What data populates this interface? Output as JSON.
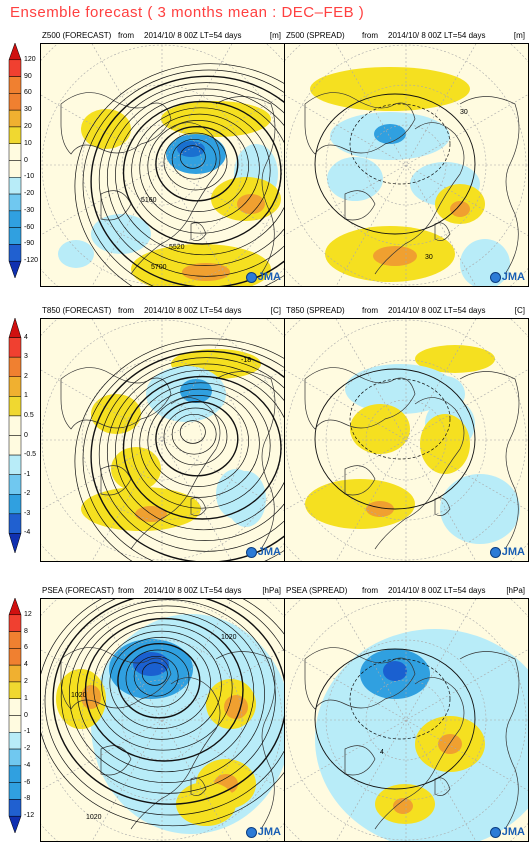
{
  "title": "Ensemble forecast ( 3 months mean : DEC–FEB )",
  "rows": [
    {
      "forecast_header": {
        "var": "Z500 (FORECAST)",
        "from": "from",
        "init": "2014/10/ 8 00Z LT=54 days",
        "unit": "[m]"
      },
      "spread_header": {
        "var": "Z500 (SPREAD)",
        "from": "from",
        "init": "2014/10/ 8 00Z LT=54 days",
        "unit": "[m]"
      },
      "colorbar": [
        "120",
        "90",
        "60",
        "30",
        "20",
        "10",
        "0",
        "-10",
        "-20",
        "-30",
        "-60",
        "-90",
        "-120"
      ],
      "forecast_labels": [
        "5160",
        "5520",
        "5700"
      ],
      "spread_labels": [
        "30",
        "30"
      ]
    },
    {
      "forecast_header": {
        "var": "T850 (FORECAST)",
        "from": "from",
        "init": "2014/10/ 8 00Z LT=54 days",
        "unit": "[C]"
      },
      "spread_header": {
        "var": "T850 (SPREAD)",
        "from": "from",
        "init": "2014/10/ 8 00Z LT=54 days",
        "unit": "[C]"
      },
      "colorbar": [
        "4",
        "3",
        "2",
        "1",
        "0.5",
        "0",
        "-0.5",
        "-1",
        "-2",
        "-3",
        "-4"
      ],
      "forecast_labels": [
        "-18"
      ],
      "spread_labels": []
    },
    {
      "forecast_header": {
        "var": "PSEA (FORECAST)",
        "from": "from",
        "init": "2014/10/ 8 00Z LT=54 days",
        "unit": "[hPa]"
      },
      "spread_header": {
        "var": "PSEA (SPREAD)",
        "from": "from",
        "init": "2014/10/ 8 00Z LT=54 days",
        "unit": "[hPa]"
      },
      "colorbar": [
        "12",
        "8",
        "6",
        "4",
        "2",
        "1",
        "0",
        "-1",
        "-2",
        "-4",
        "-6",
        "-8",
        "-12"
      ],
      "forecast_labels": [
        "1020",
        "1020",
        "1020"
      ],
      "spread_labels": [
        "4"
      ]
    }
  ],
  "logo_text": "JMA",
  "chart_data": {
    "type": "heatmap",
    "title": "Ensemble forecast ( 3 months mean : DEC–FEB )",
    "panels": [
      {
        "field": "Z500 (FORECAST)",
        "unit": "[m]",
        "colorbar_levels": [
          -120,
          -90,
          -60,
          -30,
          -20,
          -10,
          0,
          10,
          20,
          30,
          60,
          90,
          120
        ],
        "contour_labels": [
          5160,
          5520,
          5700
        ]
      },
      {
        "field": "Z500 (SPREAD)",
        "unit": "[m]",
        "colorbar_levels": [
          -120,
          -90,
          -60,
          -30,
          -20,
          -10,
          0,
          10,
          20,
          30,
          60,
          90,
          120
        ],
        "contour_labels": [
          30,
          30
        ]
      },
      {
        "field": "T850 (FORECAST)",
        "unit": "[C]",
        "colorbar_levels": [
          -4,
          -3,
          -2,
          -1,
          -0.5,
          0,
          0.5,
          1,
          2,
          3,
          4
        ],
        "contour_labels": [
          -18
        ]
      },
      {
        "field": "T850 (SPREAD)",
        "unit": "[C]",
        "colorbar_levels": [
          -4,
          -3,
          -2,
          -1,
          -0.5,
          0,
          0.5,
          1,
          2,
          3,
          4
        ],
        "contour_labels": []
      },
      {
        "field": "PSEA (FORECAST)",
        "unit": "[hPa]",
        "colorbar_levels": [
          -12,
          -8,
          -6,
          -4,
          -2,
          -1,
          0,
          1,
          2,
          4,
          6,
          8,
          12
        ],
        "contour_labels": [
          1020,
          1020,
          1020
        ]
      },
      {
        "field": "PSEA (SPREAD)",
        "unit": "[hPa]",
        "colorbar_levels": [
          -12,
          -8,
          -6,
          -4,
          -2,
          -1,
          0,
          1,
          2,
          4,
          6,
          8,
          12
        ],
        "contour_labels": [
          4
        ]
      }
    ],
    "colors": {
      "positive_strong": "#e03020",
      "positive": "#f0a030",
      "positive_weak": "#f5e020",
      "neutral": "#fffbe0",
      "negative_weak": "#b0e8f8",
      "negative": "#30a0e0",
      "negative_strong": "#1030c0"
    }
  }
}
